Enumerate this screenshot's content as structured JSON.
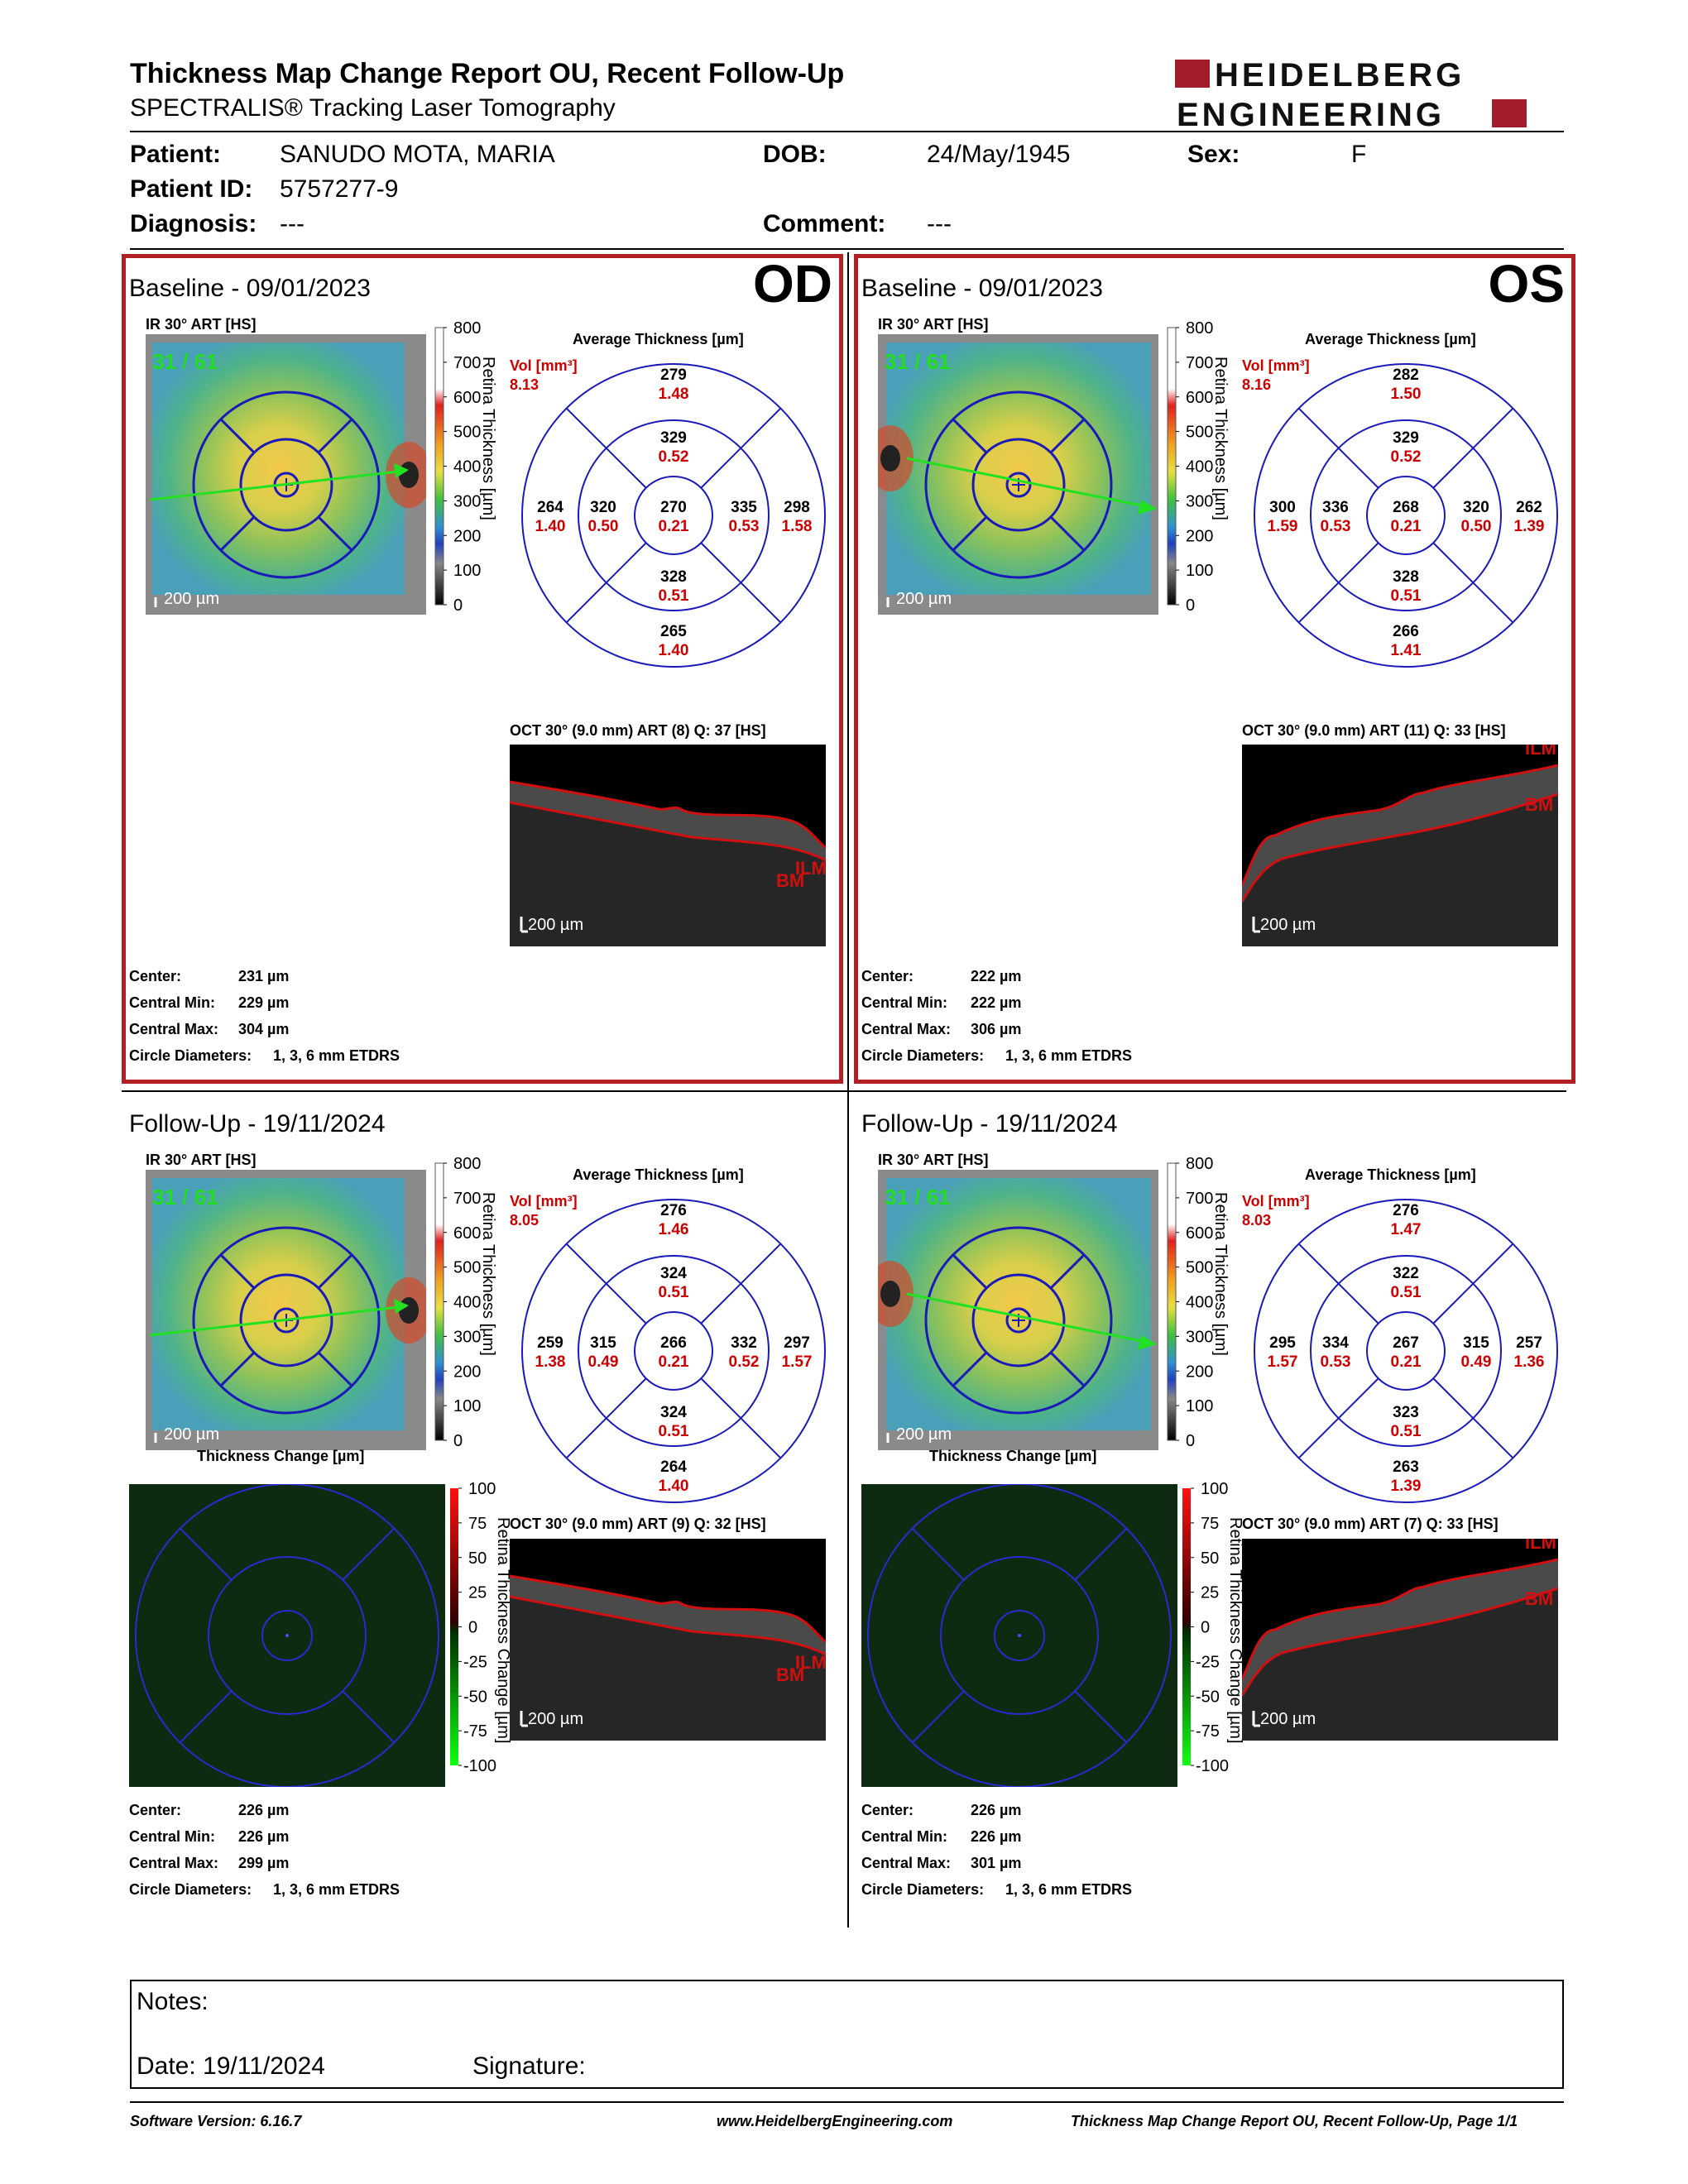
{
  "header": {
    "title": "Thickness Map Change Report OU, Recent Follow-Up",
    "subtitle": "SPECTRALIS® Tracking Laser Tomography",
    "logo_line1": "HEIDELBERG",
    "logo_line2": "ENGINEERING"
  },
  "patient": {
    "name_label": "Patient:",
    "name": "SANUDO MOTA, MARIA",
    "dob_label": "DOB:",
    "dob": "24/May/1945",
    "sex_label": "Sex:",
    "sex": "F",
    "id_label": "Patient ID:",
    "id": "5757277-9",
    "diagnosis_label": "Diagnosis:",
    "diagnosis": "---",
    "comment_label": "Comment:",
    "comment": "---"
  },
  "labels": {
    "ir": "IR 30° ART [HS]",
    "avg_thickness": "Average Thickness [µm]",
    "vol": "Vol [mm³]",
    "scale": "200 µm",
    "retina_axis": "Retina Thickness [µm]",
    "change_axis": "Retina Thickness Change [µm]",
    "thickness_change": "Thickness Change [µm]",
    "center": "Center:",
    "central_min": "Central Min:",
    "central_max": "Central Max:",
    "circle_diam": "Circle Diameters:",
    "ilm": "ILM",
    "bm": "BM",
    "color_ticks": [
      "800",
      "700",
      "600",
      "500",
      "400",
      "300",
      "200",
      "100",
      "0"
    ],
    "change_ticks": [
      "100",
      "75",
      "50",
      "25",
      "0",
      "-25",
      "-50",
      "-75",
      "-100"
    ]
  },
  "panels": {
    "od_baseline": {
      "title": "Baseline - 09/01/2023",
      "eye": "OD",
      "frames": "31 / 61",
      "vol": "8.13",
      "sectors": {
        "top_outer": [
          "279",
          "1.48"
        ],
        "top_inner": [
          "329",
          "0.52"
        ],
        "left_outer": [
          "264",
          "1.40"
        ],
        "left_inner": [
          "320",
          "0.50"
        ],
        "center": [
          "270",
          "0.21"
        ],
        "right_inner": [
          "335",
          "0.53"
        ],
        "right_outer": [
          "298",
          "1.58"
        ],
        "bottom_inner": [
          "328",
          "0.51"
        ],
        "bottom_outer": [
          "265",
          "1.40"
        ]
      },
      "oct": "OCT 30° (9.0 mm) ART (8) Q: 37 [HS]",
      "center": "231 µm",
      "cmin": "229 µm",
      "cmax": "304 µm",
      "circles": "1, 3, 6 mm ETDRS"
    },
    "os_baseline": {
      "title": "Baseline - 09/01/2023",
      "eye": "OS",
      "frames": "31 / 61",
      "vol": "8.16",
      "sectors": {
        "top_outer": [
          "282",
          "1.50"
        ],
        "top_inner": [
          "329",
          "0.52"
        ],
        "left_outer": [
          "300",
          "1.59"
        ],
        "left_inner": [
          "336",
          "0.53"
        ],
        "center": [
          "268",
          "0.21"
        ],
        "right_inner": [
          "320",
          "0.50"
        ],
        "right_outer": [
          "262",
          "1.39"
        ],
        "bottom_inner": [
          "328",
          "0.51"
        ],
        "bottom_outer": [
          "266",
          "1.41"
        ]
      },
      "oct": "OCT 30° (9.0 mm) ART (11) Q: 33 [HS]",
      "center": "222 µm",
      "cmin": "222 µm",
      "cmax": "306 µm",
      "circles": "1, 3, 6 mm ETDRS"
    },
    "od_followup": {
      "title": "Follow-Up - 19/11/2024",
      "frames": "31 / 61",
      "vol": "8.05",
      "sectors": {
        "top_outer": [
          "276",
          "1.46"
        ],
        "top_inner": [
          "324",
          "0.51"
        ],
        "left_outer": [
          "259",
          "1.38"
        ],
        "left_inner": [
          "315",
          "0.49"
        ],
        "center": [
          "266",
          "0.21"
        ],
        "right_inner": [
          "332",
          "0.52"
        ],
        "right_outer": [
          "297",
          "1.57"
        ],
        "bottom_inner": [
          "324",
          "0.51"
        ],
        "bottom_outer": [
          "264",
          "1.40"
        ]
      },
      "oct": "OCT 30° (9.0 mm) ART (9) Q: 32 [HS]",
      "center": "226 µm",
      "cmin": "226 µm",
      "cmax": "299 µm",
      "circles": "1, 3, 6 mm ETDRS"
    },
    "os_followup": {
      "title": "Follow-Up - 19/11/2024",
      "frames": "31 / 61",
      "vol": "8.03",
      "sectors": {
        "top_outer": [
          "276",
          "1.47"
        ],
        "top_inner": [
          "322",
          "0.51"
        ],
        "left_outer": [
          "295",
          "1.57"
        ],
        "left_inner": [
          "334",
          "0.53"
        ],
        "center": [
          "267",
          "0.21"
        ],
        "right_inner": [
          "315",
          "0.49"
        ],
        "right_outer": [
          "257",
          "1.36"
        ],
        "bottom_inner": [
          "323",
          "0.51"
        ],
        "bottom_outer": [
          "263",
          "1.39"
        ]
      },
      "oct": "OCT 30° (9.0 mm) ART (7) Q: 33 [HS]",
      "center": "226 µm",
      "cmin": "226 µm",
      "cmax": "301 µm",
      "circles": "1, 3, 6 mm ETDRS"
    }
  },
  "notes": {
    "notes_label": "Notes:",
    "date_label": "Date: 19/11/2024",
    "signature_label": "Signature:"
  },
  "footer": {
    "software": "Software Version: 6.16.7",
    "url": "www.HeidelbergEngineering.com",
    "page": "Thickness Map Change Report OU, Recent Follow-Up, Page 1/1"
  },
  "colors": {
    "border_red": "#b21f24",
    "vol_red": "#cc0000",
    "etdrs_blue": "#1a1ab8",
    "frames_green": "#22dd22"
  }
}
